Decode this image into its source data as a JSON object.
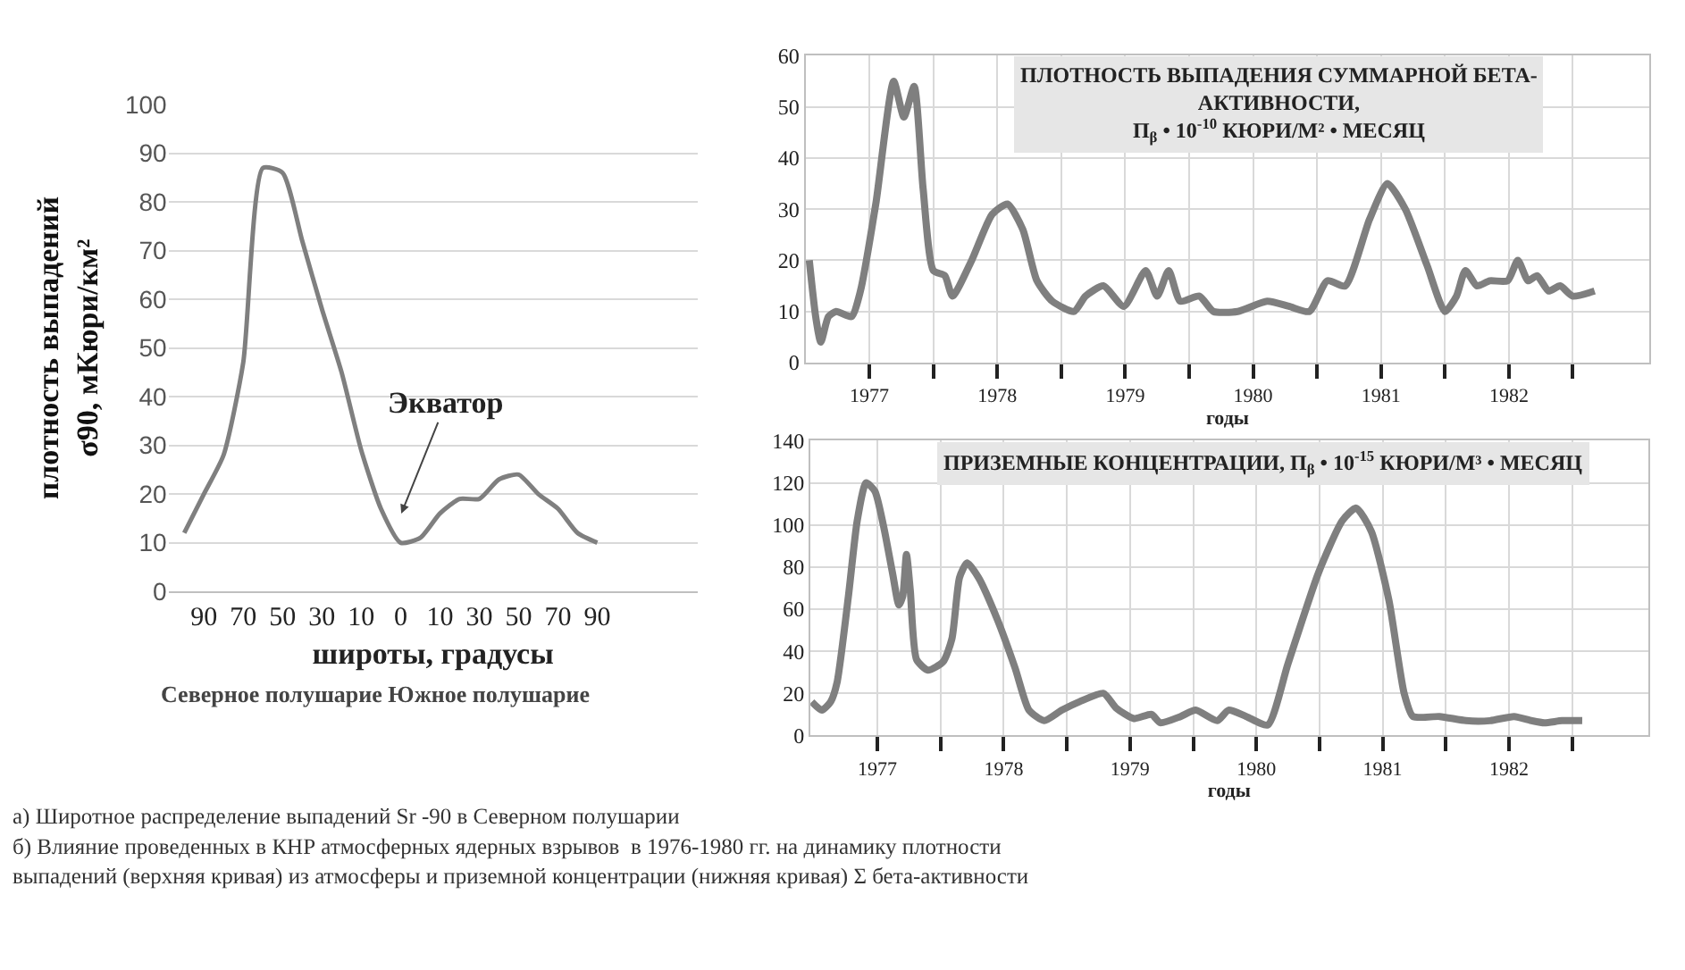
{
  "chart_data": [
    {
      "type": "line",
      "xlabel": "широты, градусы",
      "ylabel": "плотность выпадений\nσ90, мКюри/км²",
      "ylim": [
        0,
        100
      ],
      "categories": [
        null,
        "90",
        null,
        "70",
        null,
        "50",
        null,
        "30",
        null,
        "10",
        null,
        "0",
        null,
        "10",
        null,
        "30",
        null,
        "50",
        null,
        "70",
        null,
        "90"
      ],
      "yticks": [
        0,
        10,
        20,
        30,
        40,
        50,
        60,
        70,
        80,
        90,
        100
      ],
      "grid": "y",
      "marker": "none",
      "line_style": "solid",
      "annotations": [
        "Экватор",
        "Северное полушарие Южное полушарие"
      ],
      "series": [
        {
          "color": "#7f7f7f",
          "values": [
            12,
            20,
            28,
            47,
            87,
            86,
            72,
            58,
            45,
            29,
            17,
            10,
            11,
            16,
            19,
            19,
            23,
            24,
            20,
            17,
            12,
            10
          ]
        }
      ]
    },
    {
      "type": "line",
      "title": "ПЛОТНОСТЬ ВЫПАДЕНИЯ СУММАРНОЙ БЕТА-\nАКТИВНОСТИ,\nП$_{β}$ • 10$^{-10}$ КЮРИ/М² • МЕСЯЦ",
      "xlabel": "годы",
      "xlim": [
        1977.0,
        1983.6
      ],
      "ylim": [
        0,
        60
      ],
      "xticks": [
        {
          "value": 1977.5,
          "label": "1977"
        },
        {
          "value": 1978,
          "label": null
        },
        {
          "value": 1978.5,
          "label": "1978"
        },
        {
          "value": 1979,
          "label": null
        },
        {
          "value": 1979.5,
          "label": "1979"
        },
        {
          "value": 1980,
          "label": null
        },
        {
          "value": 1980.5,
          "label": "1980"
        },
        {
          "value": 1981,
          "label": null
        },
        {
          "value": 1981.5,
          "label": "1981"
        },
        {
          "value": 1982,
          "label": null
        },
        {
          "value": 1982.5,
          "label": "1982"
        },
        {
          "value": 1983,
          "label": null
        }
      ],
      "yticks": [
        0,
        10,
        20,
        30,
        40,
        50,
        60
      ],
      "grid": true,
      "marker": "none",
      "line_style": "solid",
      "series": [
        {
          "color": "#7f7f7f",
          "x": [
            1977.03,
            1977.08,
            1977.12,
            1977.18,
            1977.24,
            1977.36,
            1977.43,
            1977.55,
            1977.69,
            1977.77,
            1977.85,
            1977.92,
            1978.0,
            1978.09,
            1978.15,
            1978.3,
            1978.46,
            1978.58,
            1978.7,
            1978.81,
            1978.93,
            1979.1,
            1979.19,
            1979.33,
            1979.49,
            1979.66,
            1979.75,
            1979.84,
            1979.93,
            1980.08,
            1980.19,
            1980.38,
            1980.61,
            1980.78,
            1980.94,
            1981.08,
            1981.22,
            1981.41,
            1981.55,
            1981.69,
            1981.86,
            1982.0,
            1982.09,
            1982.16,
            1982.25,
            1982.35,
            1982.49,
            1982.57,
            1982.65,
            1982.72,
            1982.81,
            1982.9,
            1983.0,
            1983.17
          ],
          "values": [
            20,
            9,
            4,
            9,
            10,
            9,
            14,
            31,
            55,
            48,
            54,
            34,
            18,
            17,
            13,
            20,
            29,
            31,
            26,
            16,
            12,
            10,
            13,
            15,
            11,
            18,
            13,
            18,
            12,
            13,
            10,
            10,
            12,
            11,
            10,
            16,
            15,
            28,
            35,
            30,
            19,
            10,
            13,
            18,
            15,
            16,
            16,
            20,
            16,
            17,
            14,
            15,
            13,
            14
          ]
        }
      ]
    },
    {
      "type": "line",
      "title": "ПРИЗЕМНЫЕ КОНЦЕНТРАЦИИ, П$_{β}$ • 10$^{-15}$ КЮРИ/М³ • МЕСЯЦ",
      "xlabel": "годы",
      "xlim": [
        1976.97,
        1983.6
      ],
      "ylim": [
        0,
        140
      ],
      "xticks": [
        {
          "value": 1977.5,
          "label": "1977"
        },
        {
          "value": 1978,
          "label": null
        },
        {
          "value": 1978.5,
          "label": "1978"
        },
        {
          "value": 1979,
          "label": null
        },
        {
          "value": 1979.5,
          "label": "1979"
        },
        {
          "value": 1980,
          "label": null
        },
        {
          "value": 1980.5,
          "label": "1980"
        },
        {
          "value": 1981,
          "label": null
        },
        {
          "value": 1981.5,
          "label": "1981"
        },
        {
          "value": 1982,
          "label": null
        },
        {
          "value": 1982.5,
          "label": "1982"
        },
        {
          "value": 1983,
          "label": null
        }
      ],
      "yticks": [
        0,
        20,
        40,
        60,
        80,
        100,
        120,
        140
      ],
      "grid": true,
      "marker": "none",
      "line_style": "solid",
      "series": [
        {
          "color": "#7f7f7f",
          "x": [
            1976.98,
            1977.06,
            1977.13,
            1977.18,
            1977.27,
            1977.34,
            1977.41,
            1977.48,
            1977.55,
            1977.62,
            1977.67,
            1977.7,
            1977.73,
            1977.76,
            1977.81,
            1977.9,
            1978.02,
            1978.09,
            1978.15,
            1978.21,
            1978.3,
            1978.45,
            1978.59,
            1978.7,
            1978.82,
            1978.96,
            1979.1,
            1979.29,
            1979.39,
            1979.53,
            1979.67,
            1979.74,
            1979.9,
            1980.02,
            1980.19,
            1980.28,
            1980.42,
            1980.59,
            1980.75,
            1980.99,
            1981.18,
            1981.29,
            1981.41,
            1981.55,
            1981.67,
            1981.74,
            1981.95,
            1982.16,
            1982.35,
            1982.54,
            1982.68,
            1982.78,
            1982.92,
            1983.08
          ],
          "values": [
            16,
            12,
            16,
            25,
            66,
            102,
            120,
            116,
            99,
            77,
            62,
            66,
            86,
            69,
            36,
            31,
            35,
            46,
            75,
            82,
            75,
            55,
            32,
            12,
            7,
            12,
            16,
            20,
            13,
            8,
            10,
            6,
            9,
            12,
            7,
            12,
            9,
            5,
            34,
            77,
            102,
            108,
            97,
            64,
            20,
            9,
            9,
            7,
            7,
            9,
            7,
            6,
            7,
            7
          ]
        }
      ]
    },
    {
      "type": "other",
      "annotations": [
        "а) Широтное распределение выпадений Sr -90 в Северном полушарии",
        "б) Влияние проведенных в КНР атмосферных ядерных взрывов  в 1976-1980 гг. на динамику плотности\nвыпадений (верхняя кривая) из атмосферы и приземной концентрации (нижняя кривая) Σ бета-активности"
      ]
    }
  ]
}
